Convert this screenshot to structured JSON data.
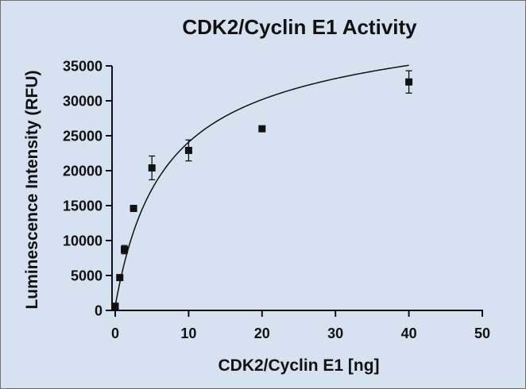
{
  "colors": {
    "background": "#d7e2f1",
    "ink": "#111111"
  },
  "chart_data": {
    "type": "scatter",
    "title": "CDK2/Cyclin E1 Activity",
    "xlabel": "CDK2/Cyclin E1 [ng]",
    "ylabel": "Luminescence Intensity (RFU)",
    "xlim": [
      0,
      50
    ],
    "ylim": [
      0,
      35000
    ],
    "xticks": [
      0,
      10,
      20,
      30,
      40,
      50
    ],
    "yticks": [
      0,
      5000,
      10000,
      15000,
      20000,
      25000,
      30000,
      35000
    ],
    "grid": false,
    "marker": "square",
    "series": [
      {
        "x": [
          0,
          0.625,
          1.25,
          2.5,
          5,
          10,
          20,
          40
        ],
        "y": [
          600,
          4700,
          8700,
          14600,
          20400,
          22900,
          26000,
          32700
        ],
        "error": [
          0,
          0,
          600,
          0,
          1700,
          1500,
          0,
          1600
        ]
      }
    ],
    "fit_curve": {
      "type": "hyperbolic saturation",
      "bmax": 38000,
      "kd": 6.5,
      "linear": 45,
      "y0": 600
    }
  }
}
